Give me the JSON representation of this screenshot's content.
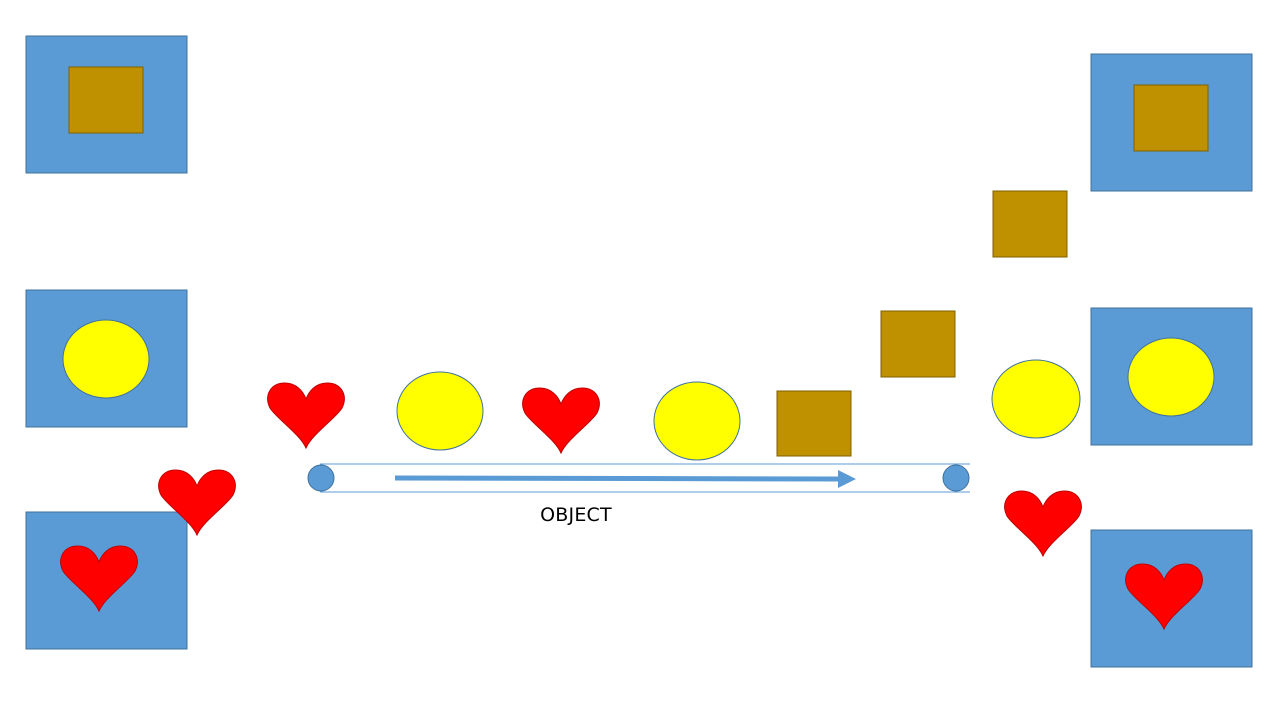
{
  "colors": {
    "bin": "#5b9bd5",
    "bin_border": "#41719c",
    "box": "#bf9000",
    "ball": "#ffff00",
    "heart": "#ff0000",
    "background": "#ffffff"
  },
  "conveyor": {
    "label": "OBJECT",
    "direction": "left-to-right"
  },
  "bins": [
    {
      "side": "left",
      "contents": "box"
    },
    {
      "side": "left",
      "contents": "ball"
    },
    {
      "side": "left",
      "contents": "heart"
    },
    {
      "side": "right",
      "contents": "box"
    },
    {
      "side": "right",
      "contents": "ball"
    },
    {
      "side": "right",
      "contents": "heart"
    }
  ],
  "objects_on_belt_in_order": [
    "heart",
    "ball",
    "heart",
    "ball",
    "box"
  ],
  "objects_being_sorted": [
    "box",
    "box",
    "ball",
    "heart"
  ],
  "objects_dropped_left": [
    "heart"
  ]
}
